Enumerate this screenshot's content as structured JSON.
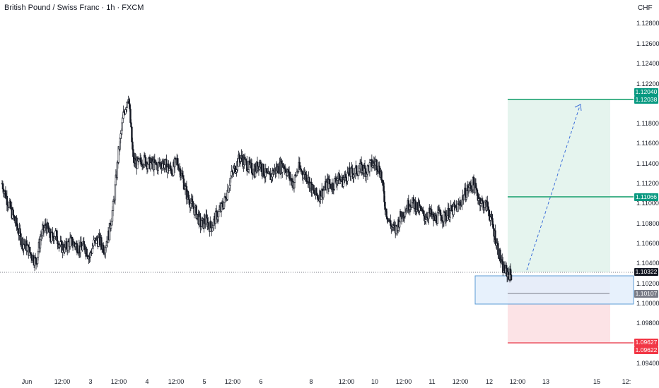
{
  "header": {
    "title": "British Pound / Swiss Franc · 1h · FXCM",
    "currency": "CHF"
  },
  "y_axis": {
    "labels": [
      "1.12800",
      "1.12600",
      "1.12400",
      "1.12200",
      "1.11800",
      "1.11600",
      "1.11400",
      "1.11200",
      "1.11000",
      "1.10800",
      "1.10600",
      "1.10400",
      "1.10200",
      "1.10000",
      "1.09800",
      "1.09400"
    ]
  },
  "x_axis": {
    "labels": [
      "Jun",
      "12:00",
      "3",
      "12:00",
      "4",
      "12:00",
      "5",
      "12:00",
      "6",
      "8",
      "12:00",
      "10",
      "12:00",
      "11",
      "12:00",
      "12",
      "12:00",
      "13",
      "15",
      "12:"
    ]
  },
  "badges": {
    "target_top": "1.12040",
    "target": "1.12038",
    "entry": "1.11066",
    "current": "1.10322",
    "zone": "1.10107",
    "stop_top": "1.09627",
    "stop": "1.09622"
  },
  "colors": {
    "bg": "#ffffff",
    "candle": "#131722",
    "profit_zone": "#e5f4ee",
    "loss_zone": "#fce3e6",
    "target_line": "#46b38b",
    "stop_line": "#f07a85",
    "zone_box": "#5b9bd5",
    "projection": "#3d6fd9",
    "badge_green": "#089981",
    "badge_red": "#f23645",
    "badge_dark": "#131722",
    "badge_gray": "#787b86"
  },
  "chart_data": {
    "type": "candlestick",
    "symbol": "GBPCHF",
    "timeframe": "1h",
    "ylim": [
      1.0925,
      1.1295
    ],
    "close_path": [
      1.112,
      1.1105,
      1.1092,
      1.108,
      1.1065,
      1.106,
      1.1052,
      1.1045,
      1.107,
      1.108,
      1.1068,
      1.1072,
      1.106,
      1.1058,
      1.1065,
      1.1062,
      1.1058,
      1.106,
      1.105,
      1.1065,
      1.1066,
      1.1058,
      1.1072,
      1.1102,
      1.115,
      1.1185,
      1.1205,
      1.1142,
      1.1138,
      1.1143,
      1.114,
      1.1138,
      1.1137,
      1.114,
      1.1136,
      1.1132,
      1.1142,
      1.1128,
      1.111,
      1.11,
      1.1092,
      1.108,
      1.1085,
      1.1078,
      1.1088,
      1.1095,
      1.1105,
      1.1125,
      1.1135,
      1.1145,
      1.114,
      1.1135,
      1.1132,
      1.114,
      1.113,
      1.1125,
      1.1132,
      1.1135,
      1.1138,
      1.1128,
      1.112,
      1.1135,
      1.113,
      1.1125,
      1.1112,
      1.1108,
      1.1112,
      1.112,
      1.1118,
      1.1125,
      1.1122,
      1.1128,
      1.113,
      1.1132,
      1.1135,
      1.1132,
      1.1138,
      1.114,
      1.113,
      1.1095,
      1.108,
      1.1075,
      1.1088,
      1.1095,
      1.1102,
      1.11,
      1.1095,
      1.1088,
      1.1092,
      1.1085,
      1.109,
      1.1088,
      1.1092,
      1.1095,
      1.1098,
      1.1108,
      1.1115,
      1.112,
      1.1108,
      1.11,
      1.1098,
      1.108,
      1.106,
      1.104,
      1.1035,
      1.1032
    ],
    "current_price": 1.10322,
    "position": {
      "target": 1.12038,
      "entry": 1.11066,
      "stop": 1.09622,
      "zone_top": 1.1029,
      "zone_bottom": 1.0999,
      "zone_mid": 1.10107
    }
  }
}
